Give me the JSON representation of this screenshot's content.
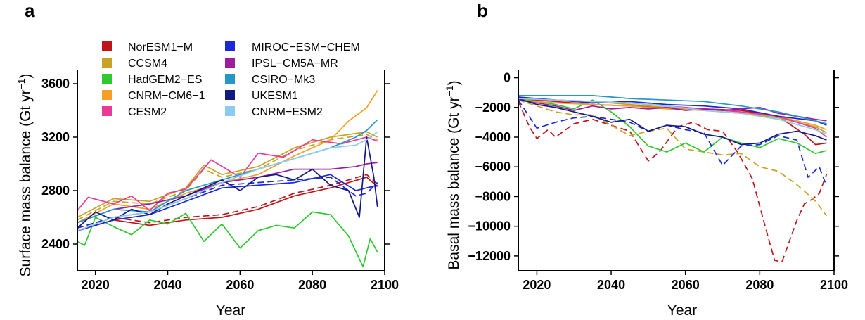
{
  "chart_data": [
    {
      "type": "line",
      "panel_label": "a",
      "xlabel": "Year",
      "ylabel": "Surface mass balance (Gt yr",
      "ylabel_sup": "−1",
      "ylabel_close": ")",
      "xlim": [
        2015,
        2100
      ],
      "ylim": [
        2200,
        3700
      ],
      "xticks": [
        2020,
        2040,
        2060,
        2080,
        2100
      ],
      "yticks": [
        2400,
        2800,
        3200,
        3600
      ],
      "legend_position": "top-left",
      "legend": [
        {
          "name": "NorESM1−M",
          "color": "#c0141b"
        },
        {
          "name": "CCSM4",
          "color": "#c8a222"
        },
        {
          "name": "HadGEM2−ES",
          "color": "#2fc92f"
        },
        {
          "name": "CNRM−CM6−1",
          "color": "#f4a025"
        },
        {
          "name": "CESM2",
          "color": "#ea3a97"
        },
        {
          "name": "MIROC−ESM−CHEM",
          "color": "#1c28d8"
        },
        {
          "name": "IPSL−CM5A−MR",
          "color": "#9c1c9e"
        },
        {
          "name": "CSIRO−Mk3",
          "color": "#2496c8"
        },
        {
          "name": "UKESM1",
          "color": "#111a80"
        },
        {
          "name": "CNRM−ESM2",
          "color": "#8ccbef"
        }
      ],
      "series": [
        {
          "color": "#c0141b",
          "dashed": false,
          "x": [
            2015,
            2025,
            2035,
            2045,
            2055,
            2065,
            2075,
            2085,
            2095,
            2098
          ],
          "y": [
            2500,
            2580,
            2540,
            2580,
            2600,
            2660,
            2760,
            2820,
            2900,
            2830
          ]
        },
        {
          "color": "#c0141b",
          "dashed": true,
          "x": [
            2015,
            2025,
            2035,
            2045,
            2055,
            2065,
            2075,
            2085,
            2095,
            2098
          ],
          "y": [
            2520,
            2600,
            2560,
            2600,
            2620,
            2680,
            2780,
            2840,
            2920,
            2850
          ]
        },
        {
          "color": "#c8a222",
          "dashed": false,
          "x": [
            2015,
            2025,
            2035,
            2045,
            2050,
            2055,
            2065,
            2075,
            2085,
            2095,
            2098
          ],
          "y": [
            2600,
            2740,
            2720,
            2820,
            2990,
            2920,
            2980,
            3120,
            3200,
            3240,
            3200
          ]
        },
        {
          "color": "#c8a222",
          "dashed": true,
          "x": [
            2015,
            2025,
            2035,
            2045,
            2050,
            2055,
            2065,
            2075,
            2085,
            2095,
            2098
          ],
          "y": [
            2580,
            2720,
            2700,
            2800,
            2960,
            2900,
            2960,
            3100,
            3180,
            3220,
            3180
          ]
        },
        {
          "color": "#2fc92f",
          "dashed": false,
          "x": [
            2015,
            2017,
            2020,
            2025,
            2030,
            2035,
            2040,
            2045,
            2050,
            2055,
            2060,
            2065,
            2070,
            2075,
            2080,
            2085,
            2090,
            2094,
            2096,
            2098
          ],
          "y": [
            2420,
            2390,
            2600,
            2530,
            2470,
            2580,
            2550,
            2630,
            2420,
            2550,
            2370,
            2500,
            2540,
            2520,
            2640,
            2620,
            2460,
            2230,
            2440,
            2340
          ]
        },
        {
          "color": "#f4a025",
          "dashed": false,
          "x": [
            2015,
            2025,
            2035,
            2045,
            2055,
            2065,
            2075,
            2085,
            2090,
            2095,
            2098
          ],
          "y": [
            2560,
            2700,
            2660,
            2780,
            2860,
            2920,
            3060,
            3180,
            3320,
            3420,
            3550
          ]
        },
        {
          "color": "#ea3a97",
          "dashed": false,
          "x": [
            2015,
            2018,
            2025,
            2030,
            2035,
            2040,
            2045,
            2052,
            2060,
            2065,
            2072,
            2080,
            2088,
            2095,
            2098
          ],
          "y": [
            2650,
            2750,
            2700,
            2760,
            2650,
            2780,
            2810,
            3030,
            2900,
            3080,
            3050,
            3180,
            3150,
            3200,
            3170
          ]
        },
        {
          "color": "#1c28d8",
          "dashed": false,
          "x": [
            2015,
            2025,
            2035,
            2045,
            2055,
            2065,
            2075,
            2085,
            2092,
            2095,
            2098
          ],
          "y": [
            2500,
            2580,
            2620,
            2720,
            2820,
            2840,
            2860,
            2920,
            2800,
            2820,
            2840
          ]
        },
        {
          "color": "#1c28d8",
          "dashed": true,
          "x": [
            2015,
            2025,
            2035,
            2045,
            2055,
            2065,
            2075,
            2085,
            2092,
            2095,
            2098
          ],
          "y": [
            2520,
            2600,
            2640,
            2740,
            2840,
            2860,
            2880,
            2900,
            2760,
            2780,
            2860
          ]
        },
        {
          "color": "#9c1c9e",
          "dashed": false,
          "x": [
            2015,
            2025,
            2035,
            2045,
            2055,
            2065,
            2075,
            2085,
            2092,
            2095,
            2098
          ],
          "y": [
            2560,
            2660,
            2700,
            2760,
            2860,
            2900,
            2960,
            2960,
            2980,
            3000,
            3010
          ]
        },
        {
          "color": "#2496c8",
          "dashed": false,
          "x": [
            2015,
            2025,
            2035,
            2045,
            2055,
            2065,
            2075,
            2085,
            2092,
            2095,
            2098
          ],
          "y": [
            2560,
            2660,
            2640,
            2800,
            2880,
            2960,
            3040,
            3120,
            3200,
            3250,
            3330
          ]
        },
        {
          "color": "#111a80",
          "dashed": false,
          "x": [
            2015,
            2020,
            2025,
            2030,
            2035,
            2040,
            2045,
            2050,
            2055,
            2060,
            2065,
            2070,
            2075,
            2080,
            2085,
            2090,
            2093,
            2095,
            2097,
            2098
          ],
          "y": [
            2520,
            2640,
            2580,
            2660,
            2620,
            2700,
            2760,
            2820,
            2880,
            2800,
            2900,
            2920,
            2880,
            2960,
            2840,
            2800,
            2600,
            3200,
            2900,
            2680
          ]
        },
        {
          "color": "#8ccbef",
          "dashed": false,
          "x": [
            2015,
            2025,
            2035,
            2045,
            2055,
            2065,
            2075,
            2085,
            2092,
            2095,
            2098
          ],
          "y": [
            2500,
            2600,
            2640,
            2740,
            2860,
            2960,
            3040,
            3120,
            3140,
            3180,
            3240
          ]
        }
      ]
    },
    {
      "type": "line",
      "panel_label": "b",
      "xlabel": "Year",
      "ylabel": "Basal mass balance (Gt yr",
      "ylabel_sup": "−1",
      "ylabel_close": ")",
      "xlim": [
        2015,
        2100
      ],
      "ylim": [
        -13000,
        500
      ],
      "xticks": [
        2020,
        2040,
        2060,
        2080,
        2100
      ],
      "yticks": [
        0,
        -2000,
        -4000,
        -6000,
        -8000,
        -10000,
        -12000
      ],
      "series": [
        {
          "color": "#c0141b",
          "dashed": false,
          "x": [
            2015,
            2025,
            2035,
            2045,
            2055,
            2065,
            2075,
            2085,
            2092,
            2095,
            2098
          ],
          "y": [
            -1400,
            -1600,
            -1800,
            -1900,
            -2000,
            -2100,
            -2200,
            -2600,
            -3800,
            -4500,
            -4400
          ]
        },
        {
          "color": "#c0141b",
          "dashed": true,
          "x": [
            2015,
            2018,
            2020,
            2023,
            2025,
            2030,
            2035,
            2040,
            2045,
            2050,
            2053,
            2058,
            2062,
            2066,
            2070,
            2074,
            2078,
            2082,
            2084,
            2086,
            2088,
            2090,
            2092,
            2094,
            2096,
            2098
          ],
          "y": [
            -1600,
            -3300,
            -4100,
            -3500,
            -4000,
            -3100,
            -2800,
            -3200,
            -3600,
            -5600,
            -5000,
            -3300,
            -3000,
            -3500,
            -3600,
            -5000,
            -6800,
            -10500,
            -12300,
            -12400,
            -11000,
            -9600,
            -8500,
            -8200,
            -7800,
            -6500
          ]
        },
        {
          "color": "#c8a222",
          "dashed": false,
          "x": [
            2015,
            2025,
            2035,
            2045,
            2055,
            2065,
            2075,
            2085,
            2095,
            2098
          ],
          "y": [
            -1300,
            -1500,
            -1600,
            -1800,
            -2000,
            -2200,
            -2400,
            -2700,
            -3300,
            -3700
          ]
        },
        {
          "color": "#c8a222",
          "dashed": true,
          "x": [
            2015,
            2020,
            2025,
            2030,
            2035,
            2040,
            2045,
            2050,
            2055,
            2060,
            2065,
            2070,
            2075,
            2080,
            2085,
            2090,
            2095,
            2098
          ],
          "y": [
            -1500,
            -1900,
            -2300,
            -2500,
            -2500,
            -3200,
            -3900,
            -3600,
            -3400,
            -4800,
            -5000,
            -5200,
            -5100,
            -6000,
            -6300,
            -7200,
            -8300,
            -9300
          ]
        },
        {
          "color": "#2fc92f",
          "dashed": false,
          "x": [
            2015,
            2020,
            2025,
            2030,
            2035,
            2040,
            2045,
            2050,
            2055,
            2060,
            2065,
            2070,
            2075,
            2080,
            2085,
            2090,
            2095,
            2098
          ],
          "y": [
            -1400,
            -1600,
            -1800,
            -2100,
            -1500,
            -2300,
            -3300,
            -4600,
            -5000,
            -4400,
            -5000,
            -4000,
            -4400,
            -4700,
            -4100,
            -4400,
            -5100,
            -4900
          ]
        },
        {
          "color": "#f4a025",
          "dashed": false,
          "x": [
            2015,
            2025,
            2035,
            2045,
            2055,
            2065,
            2075,
            2085,
            2095,
            2098
          ],
          "y": [
            -1500,
            -1700,
            -1800,
            -1900,
            -2100,
            -2200,
            -2400,
            -2600,
            -3200,
            -3500
          ]
        },
        {
          "color": "#ea3a97",
          "dashed": false,
          "x": [
            2015,
            2025,
            2035,
            2045,
            2055,
            2065,
            2075,
            2085,
            2095,
            2098
          ],
          "y": [
            -1400,
            -1500,
            -1600,
            -1700,
            -1900,
            -2100,
            -2300,
            -2600,
            -3400,
            -4000
          ]
        },
        {
          "color": "#1c28d8",
          "dashed": false,
          "x": [
            2015,
            2025,
            2035,
            2045,
            2055,
            2065,
            2075,
            2085,
            2095,
            2098
          ],
          "y": [
            -1300,
            -1500,
            -1700,
            -1600,
            -1800,
            -1900,
            -2100,
            -2600,
            -2900,
            -3200
          ]
        },
        {
          "color": "#1c28d8",
          "dashed": true,
          "x": [
            2015,
            2020,
            2025,
            2030,
            2035,
            2040,
            2045,
            2050,
            2055,
            2060,
            2065,
            2070,
            2075,
            2080,
            2085,
            2090,
            2093,
            2096,
            2098
          ],
          "y": [
            -1500,
            -3400,
            -3000,
            -2700,
            -2600,
            -2800,
            -3000,
            -3600,
            -3200,
            -3500,
            -3700,
            -5900,
            -4600,
            -4500,
            -3900,
            -4200,
            -6700,
            -6000,
            -7300
          ]
        },
        {
          "color": "#9c1c9e",
          "dashed": false,
          "x": [
            2015,
            2020,
            2025,
            2030,
            2035,
            2040,
            2045,
            2050,
            2055,
            2060,
            2065,
            2070,
            2075,
            2080,
            2085,
            2090,
            2095,
            2098
          ],
          "y": [
            -1500,
            -1700,
            -1900,
            -2200,
            -1900,
            -2100,
            -2000,
            -2100,
            -2000,
            -2200,
            -2100,
            -2200,
            -2100,
            -2000,
            -2400,
            -2600,
            -2800,
            -2900
          ]
        },
        {
          "color": "#2496c8",
          "dashed": false,
          "x": [
            2015,
            2025,
            2035,
            2045,
            2055,
            2065,
            2075,
            2085,
            2095,
            2098
          ],
          "y": [
            -1200,
            -1200,
            -1200,
            -1400,
            -1500,
            -1600,
            -1900,
            -2300,
            -2900,
            -3100
          ]
        },
        {
          "color": "#111a80",
          "dashed": false,
          "x": [
            2015,
            2020,
            2025,
            2030,
            2035,
            2040,
            2045,
            2050,
            2055,
            2060,
            2065,
            2070,
            2075,
            2080,
            2085,
            2090,
            2095,
            2098
          ],
          "y": [
            -1400,
            -1800,
            -2000,
            -2300,
            -2600,
            -3000,
            -2800,
            -3600,
            -3200,
            -3300,
            -3800,
            -4000,
            -4500,
            -4400,
            -3800,
            -3600,
            -3900,
            -4200
          ]
        },
        {
          "color": "#8ccbef",
          "dashed": false,
          "x": [
            2015,
            2025,
            2035,
            2045,
            2055,
            2065,
            2075,
            2085,
            2095,
            2098
          ],
          "y": [
            -1400,
            -1500,
            -1600,
            -1700,
            -1900,
            -2200,
            -2400,
            -2800,
            -3500,
            -3800
          ]
        }
      ]
    }
  ]
}
